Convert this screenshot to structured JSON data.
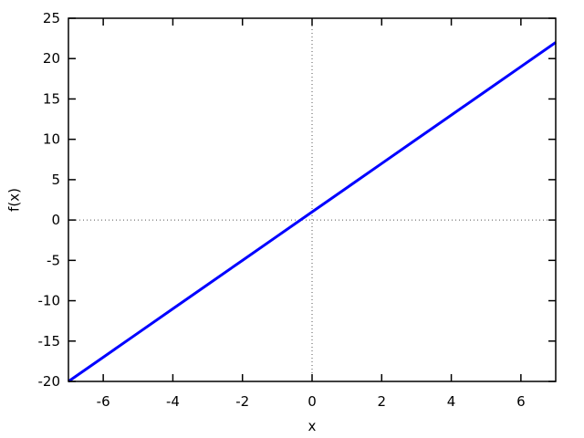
{
  "figure": {
    "background_color": "#ffffff",
    "border_color": "#000000",
    "text_color": "#000000",
    "zero_line_color": "#555555"
  },
  "chart_data": {
    "type": "line",
    "title": "",
    "xlabel": "x",
    "ylabel": "f(x)",
    "xlim": [
      -7,
      7
    ],
    "ylim": [
      -20,
      25
    ],
    "xticks": [
      -6,
      -4,
      -2,
      0,
      2,
      4,
      6
    ],
    "yticks": [
      -20,
      -15,
      -10,
      -5,
      0,
      5,
      10,
      15,
      20,
      25
    ],
    "grid": "dotted zero axes only (x=0 and y=0)",
    "legend_position": "none",
    "series": [
      {
        "name": "f(x)",
        "color": "#0000ff",
        "line_width": 3,
        "x": [
          -7,
          -6,
          -5,
          -4,
          -3,
          -2,
          -1,
          0,
          1,
          2,
          3,
          4,
          5,
          6,
          7
        ],
        "y": [
          -20,
          -17,
          -14,
          -11,
          -8,
          -5,
          -2,
          1,
          4,
          7,
          10,
          13,
          16,
          19,
          22
        ]
      }
    ]
  }
}
